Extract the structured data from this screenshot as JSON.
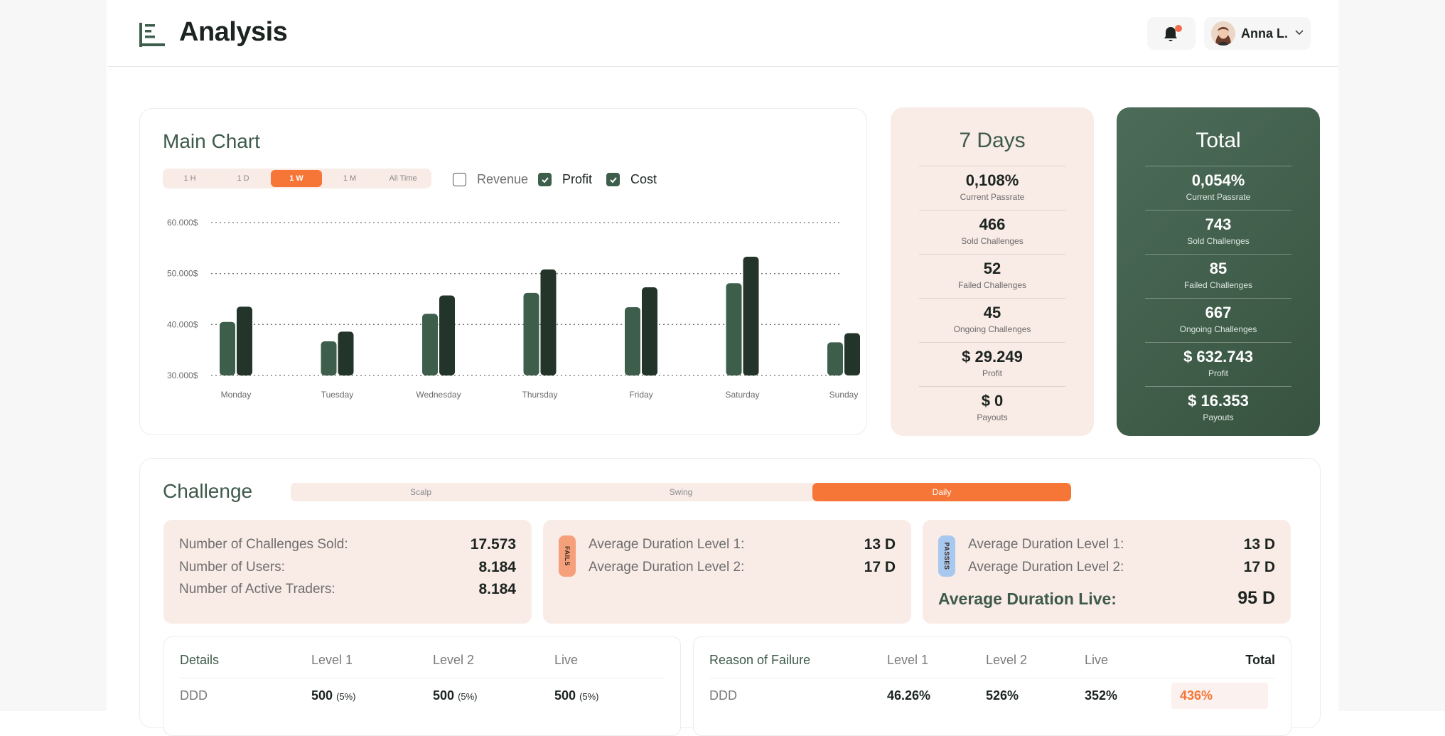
{
  "header": {
    "title": "Analysis",
    "user_name": "Anna L."
  },
  "main_chart": {
    "title": "Main Chart",
    "ranges": [
      "1 H",
      "1 D",
      "1 W",
      "1 M",
      "All Time"
    ],
    "active_range": "1 W",
    "toggles": [
      {
        "label": "Revenue",
        "checked": false
      },
      {
        "label": "Profit",
        "checked": true
      },
      {
        "label": "Cost",
        "checked": true
      }
    ]
  },
  "chart_data": {
    "type": "bar",
    "categories": [
      "Monday",
      "Tuesday",
      "Wednesday",
      "Thursday",
      "Friday",
      "Saturday",
      "Sunday"
    ],
    "series": [
      {
        "name": "Profit",
        "values": [
          40500,
          36700,
          42100,
          46200,
          43400,
          48100,
          36500
        ]
      },
      {
        "name": "Cost",
        "values": [
          43500,
          38600,
          45700,
          50800,
          47300,
          53300,
          38300
        ]
      }
    ],
    "y_ticks": [
      "60.000$",
      "50.000$",
      "40.000$",
      "30.000$"
    ],
    "ylim": [
      30000,
      60000
    ],
    "grid": "dotted",
    "colors": {
      "Profit": "#3e5e4c",
      "Cost": "#23352a"
    }
  },
  "seven_days": {
    "title": "7 Days",
    "stats": [
      {
        "value": "0,108%",
        "label": "Current Passrate"
      },
      {
        "value": "466",
        "label": "Sold Challenges"
      },
      {
        "value": "52",
        "label": "Failed Challenges"
      },
      {
        "value": "45",
        "label": "Ongoing Challenges"
      },
      {
        "value": "$ 29.249",
        "label": "Profit"
      },
      {
        "value": "$ 0",
        "label": "Payouts"
      }
    ]
  },
  "total": {
    "title": "Total",
    "stats": [
      {
        "value": "0,054%",
        "label": "Current Passrate"
      },
      {
        "value": "743",
        "label": "Sold Challenges"
      },
      {
        "value": "85",
        "label": "Failed Challenges"
      },
      {
        "value": "667",
        "label": "Ongoing Challenges"
      },
      {
        "value": "$ 632.743",
        "label": "Profit"
      },
      {
        "value": "$ 16.353",
        "label": "Payouts"
      }
    ]
  },
  "challenge": {
    "title": "Challenge",
    "tabs": [
      "Scalp",
      "Swing",
      "Daily"
    ],
    "active_tab": "Daily",
    "summary": [
      {
        "label": "Number of Challenges Sold:",
        "value": "17.573"
      },
      {
        "label": "Number of Users:",
        "value": "8.184"
      },
      {
        "label": "Number of Active Traders:",
        "value": "8.184"
      }
    ],
    "fails": {
      "badge": "FAILS",
      "rows": [
        {
          "label": "Average Duration Level 1:",
          "value": "13 D"
        },
        {
          "label": "Average Duration Level 2:",
          "value": "17 D"
        }
      ]
    },
    "passes": {
      "badge": "PASSES",
      "rows": [
        {
          "label": "Average Duration Level 1:",
          "value": "13 D"
        },
        {
          "label": "Average Duration Level 2:",
          "value": "17 D"
        }
      ],
      "live_label": "Average Duration Live:",
      "live_value": "95 D"
    },
    "details_table": {
      "headers": [
        "Details",
        "Level 1",
        "Level 2",
        "Live"
      ],
      "row": {
        "label": "DDD",
        "l1": "500",
        "l1_pct": "(5%)",
        "l2": "500",
        "l2_pct": "(5%)",
        "live": "500",
        "live_pct": "(5%)"
      }
    },
    "failure_table": {
      "headers": [
        "Reason of Failure",
        "Level 1",
        "Level 2",
        "Live",
        "Total"
      ],
      "row": {
        "label": "DDD",
        "l1": "46.26%",
        "l2": "526%",
        "live": "352%",
        "total": "436%"
      }
    }
  }
}
